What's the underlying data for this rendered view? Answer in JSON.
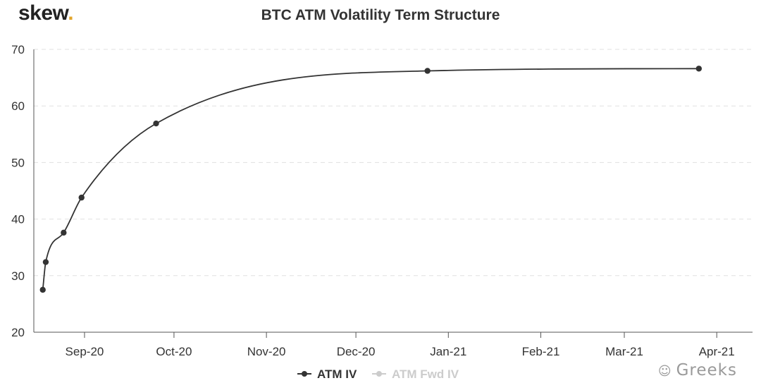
{
  "brand": {
    "name": "skew",
    "dot": "."
  },
  "watermark": {
    "icon": "wechat-icon",
    "text": "Greeks"
  },
  "colors": {
    "series": "#333333",
    "disabled": "#cccccc",
    "grid": "#e0e0e0",
    "brand_dot": "#e2a52a"
  },
  "chart_data": {
    "type": "line",
    "title": "BTC ATM Volatility Term Structure",
    "xlabel": "",
    "ylabel": "",
    "x_type": "date",
    "xlim": [
      "2020-08-15",
      "2021-04-13"
    ],
    "ylim": [
      20,
      70
    ],
    "y_ticks": [
      20,
      30,
      40,
      50,
      60,
      70
    ],
    "x_ticks": [
      {
        "date": "2020-09-01",
        "label": "Sep-20"
      },
      {
        "date": "2020-10-01",
        "label": "Oct-20"
      },
      {
        "date": "2020-11-01",
        "label": "Nov-20"
      },
      {
        "date": "2020-12-01",
        "label": "Dec-20"
      },
      {
        "date": "2021-01-01",
        "label": "Jan-21"
      },
      {
        "date": "2021-02-01",
        "label": "Feb-21"
      },
      {
        "date": "2021-03-01",
        "label": "Mar-21"
      },
      {
        "date": "2021-04-01",
        "label": "Apr-21"
      }
    ],
    "grid": true,
    "legend_position": "bottom",
    "series": [
      {
        "name": "ATM IV",
        "active": true,
        "x": [
          "2020-08-18",
          "2020-08-19",
          "2020-08-25",
          "2020-08-31",
          "2020-09-25",
          "2020-12-25",
          "2021-03-26"
        ],
        "values": [
          27.5,
          32.4,
          37.6,
          43.8,
          56.9,
          66.2,
          66.6
        ]
      },
      {
        "name": "ATM Fwd IV",
        "active": false,
        "x": [],
        "values": []
      }
    ]
  }
}
